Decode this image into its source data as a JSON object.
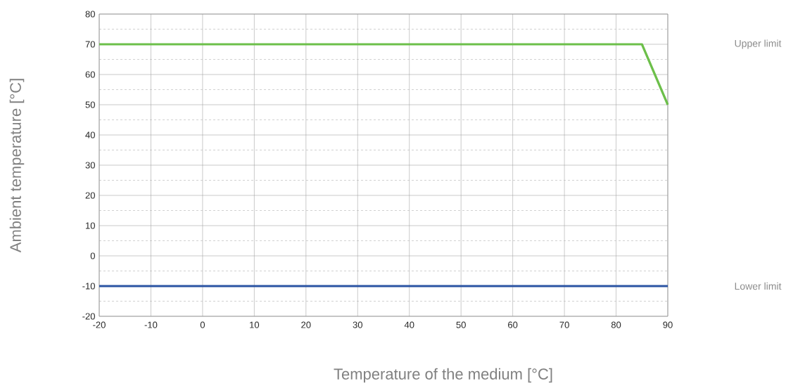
{
  "chart_data": {
    "type": "line",
    "xlabel": "Temperature of the medium [°C]",
    "ylabel": "Ambient temperature [°C]",
    "series": [
      {
        "name": "Upper limit",
        "color": "#6cbf4a",
        "x": [
          -20,
          85,
          90
        ],
        "values": [
          70,
          70,
          50
        ]
      },
      {
        "name": "Lower limit",
        "color": "#2b54a3",
        "x": [
          -20,
          90
        ],
        "values": [
          -10,
          -10
        ]
      }
    ],
    "xlim": [
      -20,
      90
    ],
    "ylim": [
      -20,
      80
    ],
    "xticks": [
      -20,
      -10,
      0,
      10,
      20,
      30,
      40,
      50,
      60,
      70,
      80,
      90
    ],
    "yticks": [
      -20,
      {
        "value": -15,
        "label": null
      },
      -10,
      {
        "value": -5,
        "label": null
      },
      0,
      {
        "value": 5,
        "label": null
      },
      10,
      {
        "value": 15,
        "label": null
      },
      20,
      {
        "value": 25,
        "label": null
      },
      30,
      {
        "value": 35,
        "label": null
      },
      40,
      {
        "value": 45,
        "label": null
      },
      50,
      {
        "value": 55,
        "label": null
      },
      60,
      {
        "value": 65,
        "label": null
      },
      70,
      {
        "value": 75,
        "label": null
      },
      80
    ],
    "grid": true
  }
}
